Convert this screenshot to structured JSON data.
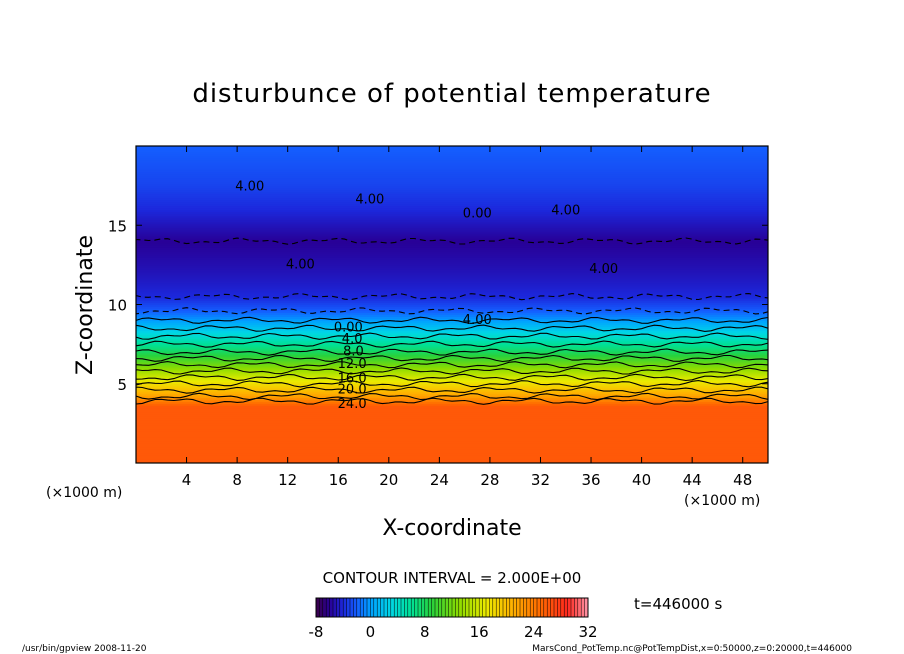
{
  "chart_data": {
    "type": "heatmap",
    "title": "disturbunce of potential temperature",
    "xlabel": "X-coordinate",
    "ylabel": "Z-coordinate",
    "x_unit_left": "(×1000 m)",
    "x_unit_right": "(×1000 m)",
    "xlim": [
      0,
      50
    ],
    "ylim": [
      0,
      20
    ],
    "x_ticks": [
      4,
      8,
      12,
      16,
      20,
      24,
      28,
      32,
      36,
      40,
      44,
      48
    ],
    "y_ticks": [
      5,
      10,
      15
    ],
    "contour_interval_label": "CONTOUR INTERVAL = 2.000E+00",
    "time_label": "t=446000 s",
    "colorbar": {
      "ticks": [
        -8,
        0,
        8,
        16,
        24,
        32
      ],
      "min": -8,
      "max": 32
    },
    "contour_labels": [
      {
        "text": "4.00",
        "x": 9,
        "z": 17.5
      },
      {
        "text": "4.00",
        "x": 18.5,
        "z": 16.7
      },
      {
        "text": "0.00",
        "x": 27,
        "z": 15.8
      },
      {
        "text": "4.00",
        "x": 34,
        "z": 16.0
      },
      {
        "text": "4.00",
        "x": 13,
        "z": 12.6
      },
      {
        "text": "4.00",
        "x": 37,
        "z": 12.3
      },
      {
        "text": "4.00",
        "x": 27,
        "z": 9.1
      },
      {
        "text": "0.00",
        "x": 16.8,
        "z": 8.6
      },
      {
        "text": "4.0",
        "x": 17.1,
        "z": 7.9
      },
      {
        "text": "8.0",
        "x": 17.2,
        "z": 7.1
      },
      {
        "text": "12.0",
        "x": 17.1,
        "z": 6.3
      },
      {
        "text": "16.0",
        "x": 17.1,
        "z": 5.4
      },
      {
        "text": "20.0",
        "x": 17.1,
        "z": 4.7
      },
      {
        "text": "24.0",
        "x": 17.1,
        "z": 3.8
      }
    ],
    "vertical_profile": [
      {
        "z": 0,
        "value": 26
      },
      {
        "z": 3.6,
        "value": 26
      },
      {
        "z": 3.9,
        "value": 24
      },
      {
        "z": 4.2,
        "value": 22
      },
      {
        "z": 4.6,
        "value": 20
      },
      {
        "z": 5.0,
        "value": 18
      },
      {
        "z": 5.4,
        "value": 16
      },
      {
        "z": 5.8,
        "value": 14
      },
      {
        "z": 6.2,
        "value": 12
      },
      {
        "z": 6.6,
        "value": 10
      },
      {
        "z": 7.0,
        "value": 8
      },
      {
        "z": 7.5,
        "value": 6
      },
      {
        "z": 8.0,
        "value": 4
      },
      {
        "z": 8.5,
        "value": 2
      },
      {
        "z": 9.0,
        "value": 0
      },
      {
        "z": 9.6,
        "value": -2
      },
      {
        "z": 10.5,
        "value": -4
      },
      {
        "z": 12.0,
        "value": -5
      },
      {
        "z": 14.0,
        "value": -6
      },
      {
        "z": 16.0,
        "value": -4
      },
      {
        "z": 17.5,
        "value": -3
      },
      {
        "z": 20.0,
        "value": -2
      }
    ]
  },
  "footer": {
    "left": "/usr/bin/gpview  2008-11-20",
    "right": "MarsCond_PotTemp.nc@PotTempDist,x=0:50000,z=0:20000,t=446000"
  }
}
